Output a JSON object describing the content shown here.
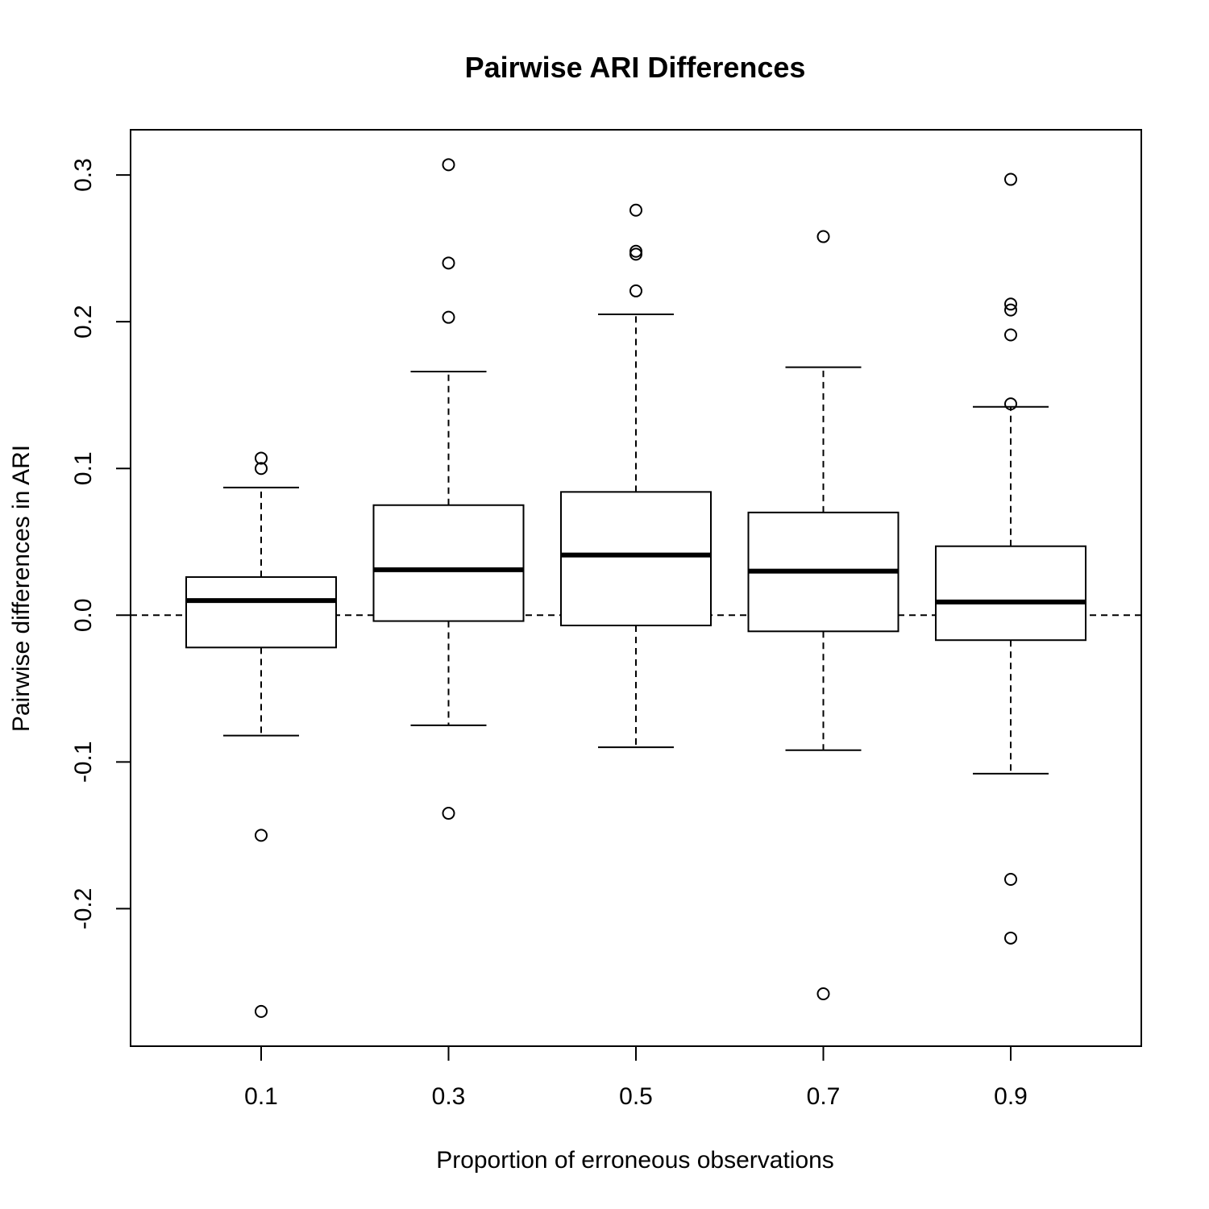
{
  "chart_data": {
    "type": "boxplot",
    "title": "Pairwise ARI Differences",
    "xlabel": "Proportion of erroneous observations",
    "ylabel": "Pairwise differences in ARI",
    "categories": [
      "0.1",
      "0.3",
      "0.5",
      "0.7",
      "0.9"
    ],
    "y_ticks": [
      "-0.2",
      "-0.1",
      "0.0",
      "0.1",
      "0.2",
      "0.3"
    ],
    "y_tick_values": [
      -0.2,
      -0.1,
      0.0,
      0.1,
      0.2,
      0.3
    ],
    "ylim": [
      -0.2937,
      0.3308
    ],
    "reference_line": 0.0,
    "grid": false,
    "boxes": [
      {
        "category": "0.1",
        "whisker_low": -0.082,
        "q1": -0.022,
        "median": 0.01,
        "q3": 0.026,
        "whisker_high": 0.087,
        "outliers": [
          0.107,
          0.1,
          -0.15,
          -0.27
        ]
      },
      {
        "category": "0.3",
        "whisker_low": -0.075,
        "q1": -0.004,
        "median": 0.031,
        "q3": 0.075,
        "whisker_high": 0.166,
        "outliers": [
          0.307,
          0.24,
          0.203,
          -0.135
        ]
      },
      {
        "category": "0.5",
        "whisker_low": -0.09,
        "q1": -0.007,
        "median": 0.041,
        "q3": 0.084,
        "whisker_high": 0.205,
        "outliers": [
          0.276,
          0.248,
          0.246,
          0.221
        ]
      },
      {
        "category": "0.7",
        "whisker_low": -0.092,
        "q1": -0.011,
        "median": 0.03,
        "q3": 0.07,
        "whisker_high": 0.169,
        "outliers": [
          0.258,
          -0.258
        ]
      },
      {
        "category": "0.9",
        "whisker_low": -0.108,
        "q1": -0.017,
        "median": 0.009,
        "q3": 0.047,
        "whisker_high": 0.142,
        "outliers": [
          0.297,
          0.212,
          0.208,
          0.191,
          0.144,
          -0.18,
          -0.22
        ]
      }
    ]
  }
}
